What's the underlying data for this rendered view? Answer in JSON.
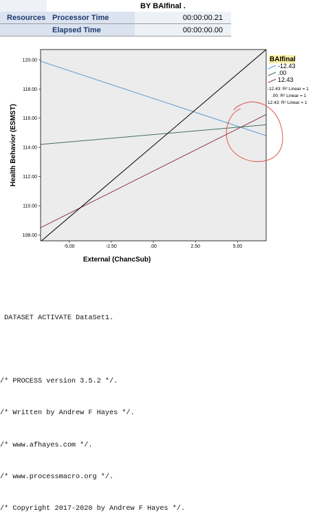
{
  "resources": {
    "header_right": "BY BAIfinal .",
    "section_label": "Resources",
    "rows": [
      {
        "name": "Processor Time",
        "value": "00:00:00.21"
      },
      {
        "name": "Elapsed Time",
        "value": "00:00:00.00"
      }
    ]
  },
  "chart_data": {
    "type": "line",
    "xlabel": "External (ChancSub)",
    "ylabel": "Health Behavior (ESMST)",
    "xlim": [
      -6.7,
      6.7
    ],
    "ylim": [
      107.6,
      120.7
    ],
    "x_ticks": [
      "-5.00",
      "-2.50",
      ".00",
      "2.50",
      "5.00"
    ],
    "x_tick_values": [
      -5,
      -2.5,
      0,
      2.5,
      5
    ],
    "y_ticks": [
      "108.00",
      "110.00",
      "112.00",
      "114.00",
      "116.00",
      "118.00",
      "120.00"
    ],
    "y_tick_values": [
      108,
      110,
      112,
      114,
      116,
      118,
      120
    ],
    "grid": false,
    "background": "#ececec",
    "legend": {
      "title": "BAIfinal",
      "placement": "right",
      "entries": [
        "-12.43",
        ".00",
        "12.43"
      ]
    },
    "series": [
      {
        "name": "-12.43",
        "color": "#5b9bd5",
        "x": [
          -6.7,
          6.7
        ],
        "y": [
          119.9,
          114.8
        ]
      },
      {
        "name": ".00",
        "color": "#3f6e5f",
        "x": [
          -6.7,
          6.7
        ],
        "y": [
          114.2,
          115.55
        ]
      },
      {
        "name": "12.43",
        "color": "#8b3a52",
        "x": [
          -6.7,
          6.7
        ],
        "y": [
          108.5,
          116.25
        ]
      },
      {
        "name": "",
        "color": "#111111",
        "x": [
          -6.7,
          6.7
        ],
        "y": [
          107.55,
          120.7
        ]
      }
    ],
    "fit_lines": [
      "-12.43: R² Linear = 1",
      ".00: R² Linear = 1",
      "12.43: R² Linear = 1"
    ],
    "annotation_color": "#e0524a"
  },
  "syntax_lines": [
    " DATASET ACTIVATE DataSet1.",
    "",
    "/* PROCESS version 3.5.2 */.",
    "/* Written by Andrew F Hayes */.",
    "/* www.afhayes.com */.",
    "/* www.processmacro.org */.",
    "/* Copyright 2017-2020 by Andrew F Hayes */."
  ]
}
